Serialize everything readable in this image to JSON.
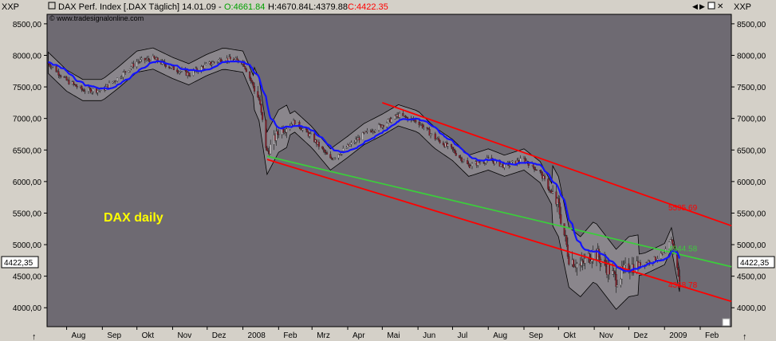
{
  "header": {
    "left_axis_label": "XXP",
    "right_axis_label": "XXP",
    "title": "DAX Perf. Index [.DAX  Täglich] 14.01.09 -",
    "open": "O:4661.84",
    "high": "H:4670.84",
    "low": "L:4379.88",
    "close": "C:4422.35",
    "copyright": "© www.tradesignalonline.com"
  },
  "colors": {
    "plot_bg": "#6e6a72",
    "frame": "#d4d0c8",
    "open_green": "#00a000",
    "close_red": "#ff0000",
    "blue_line": "#1414ff",
    "green_channel": "#3ccc3c",
    "red_channel": "#ff0000",
    "band_fill": "#8a868c",
    "annotation_yellow": "#ffff00"
  },
  "annotation_text": "DAX daily",
  "current_price_label": "4422,35",
  "chart_data": {
    "type": "line",
    "title": "DAX Perf. Index [.DAX  Täglich] 14.01.09",
    "ylim": [
      3700,
      8650
    ],
    "y_ticks": [
      "8500,00",
      "8000,00",
      "7500,00",
      "7000,00",
      "6500,00",
      "6000,00",
      "5500,00",
      "5000,00",
      "4500,00",
      "4000,00"
    ],
    "y_tick_values": [
      8500,
      8000,
      7500,
      7000,
      6500,
      6000,
      5500,
      5000,
      4500,
      4000
    ],
    "x_ticks": [
      "Aug",
      "Sep",
      "Okt",
      "Nov",
      "Dez",
      "2008",
      "Feb",
      "Mrz",
      "Apr",
      "Mai",
      "Jun",
      "Jul",
      "Aug",
      "Sep",
      "Okt",
      "Nov",
      "Dez",
      "2009",
      "Feb"
    ],
    "x_tick_dates": [
      "2007-08",
      "2007-09",
      "2007-10",
      "2007-11",
      "2007-12",
      "2008-01",
      "2008-02",
      "2008-03",
      "2008-04",
      "2008-05",
      "2008-06",
      "2008-07",
      "2008-08",
      "2008-09",
      "2008-10",
      "2008-11",
      "2008-12",
      "2009-01",
      "2009-02"
    ],
    "x_range": [
      "2007-07-15",
      "2009-02-28"
    ],
    "series": [
      {
        "x": [
          "2007-07-15",
          "2007-08-01",
          "2007-08-15",
          "2007-09-01",
          "2007-09-15",
          "2007-10-01",
          "2007-10-15",
          "2007-11-01",
          "2007-11-15",
          "2007-12-01",
          "2007-12-15",
          "2008-01-01",
          "2008-01-15",
          "2008-01-22",
          "2008-02-01",
          "2008-02-15",
          "2008-03-01",
          "2008-03-17",
          "2008-04-01",
          "2008-04-15",
          "2008-05-01",
          "2008-05-15",
          "2008-06-01",
          "2008-06-15",
          "2008-07-01",
          "2008-07-15",
          "2008-08-01",
          "2008-08-15",
          "2008-09-01",
          "2008-09-15",
          "2008-10-01",
          "2008-10-10",
          "2008-10-20",
          "2008-11-01",
          "2008-11-20",
          "2008-12-01",
          "2008-12-15",
          "2009-01-01",
          "2009-01-07",
          "2009-01-14"
        ],
        "y": [
          7900,
          7600,
          7450,
          7450,
          7650,
          7900,
          7950,
          7800,
          7700,
          7850,
          7950,
          7900,
          7300,
          6450,
          6800,
          6950,
          6700,
          6350,
          6550,
          6750,
          6900,
          7050,
          6950,
          6700,
          6500,
          6250,
          6350,
          6250,
          6350,
          6150,
          5600,
          4800,
          4650,
          4900,
          4450,
          4650,
          4700,
          4850,
          5100,
          4422
        ]
      }
    ],
    "channels": [
      {
        "label": "5595.69",
        "value": 5595.69,
        "color": "red",
        "from": [
          "2008-05-01",
          7250
        ],
        "to": [
          "2009-02-28",
          5300
        ]
      },
      {
        "label": "4944.58",
        "value": 4944.58,
        "color": "green",
        "from": [
          "2008-01-22",
          6400
        ],
        "to": [
          "2009-02-28",
          4650
        ]
      },
      {
        "label": "4368.78",
        "value": 4368.78,
        "color": "red",
        "from": [
          "2008-01-22",
          6350
        ],
        "to": [
          "2009-02-28",
          4100
        ]
      }
    ],
    "grid": false,
    "legend": "none"
  },
  "toolbar": {
    "nav_left_icon": "arrow-left-icon",
    "nav_right_icon": "arrow-right-icon",
    "restore_icon": "restore-icon",
    "close_icon": "close-icon"
  }
}
